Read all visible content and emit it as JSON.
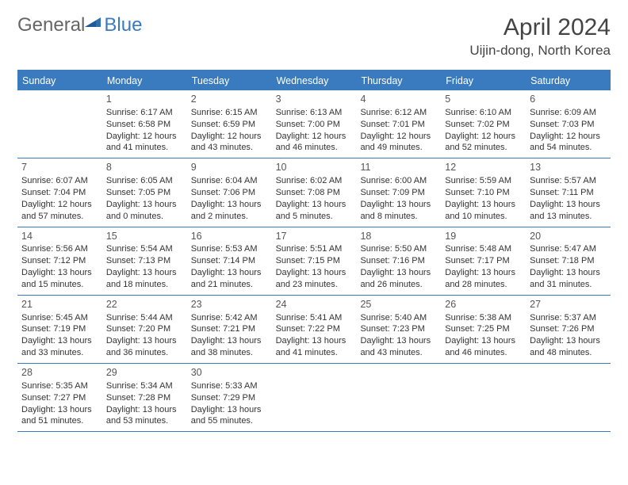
{
  "brand": {
    "part1": "General",
    "part2": "Blue"
  },
  "title": "April 2024",
  "location": "Uijin-dong, North Korea",
  "colors": {
    "header_bg": "#3a7bbf",
    "header_border": "#3a7bbf",
    "row_border": "#3a7bbf",
    "weekday_text": "#ffffff",
    "body_text": "#333333",
    "page_bg": "#ffffff"
  },
  "typography": {
    "title_fontsize": 30,
    "location_fontsize": 17,
    "weekday_fontsize": 12.5,
    "cell_fontsize": 11
  },
  "weekdays": [
    "Sunday",
    "Monday",
    "Tuesday",
    "Wednesday",
    "Thursday",
    "Friday",
    "Saturday"
  ],
  "weeks": [
    [
      null,
      {
        "n": "1",
        "sunrise": "6:17 AM",
        "sunset": "6:58 PM",
        "dl1": "Daylight: 12 hours",
        "dl2": "and 41 minutes."
      },
      {
        "n": "2",
        "sunrise": "6:15 AM",
        "sunset": "6:59 PM",
        "dl1": "Daylight: 12 hours",
        "dl2": "and 43 minutes."
      },
      {
        "n": "3",
        "sunrise": "6:13 AM",
        "sunset": "7:00 PM",
        "dl1": "Daylight: 12 hours",
        "dl2": "and 46 minutes."
      },
      {
        "n": "4",
        "sunrise": "6:12 AM",
        "sunset": "7:01 PM",
        "dl1": "Daylight: 12 hours",
        "dl2": "and 49 minutes."
      },
      {
        "n": "5",
        "sunrise": "6:10 AM",
        "sunset": "7:02 PM",
        "dl1": "Daylight: 12 hours",
        "dl2": "and 52 minutes."
      },
      {
        "n": "6",
        "sunrise": "6:09 AM",
        "sunset": "7:03 PM",
        "dl1": "Daylight: 12 hours",
        "dl2": "and 54 minutes."
      }
    ],
    [
      {
        "n": "7",
        "sunrise": "6:07 AM",
        "sunset": "7:04 PM",
        "dl1": "Daylight: 12 hours",
        "dl2": "and 57 minutes."
      },
      {
        "n": "8",
        "sunrise": "6:05 AM",
        "sunset": "7:05 PM",
        "dl1": "Daylight: 13 hours",
        "dl2": "and 0 minutes."
      },
      {
        "n": "9",
        "sunrise": "6:04 AM",
        "sunset": "7:06 PM",
        "dl1": "Daylight: 13 hours",
        "dl2": "and 2 minutes."
      },
      {
        "n": "10",
        "sunrise": "6:02 AM",
        "sunset": "7:08 PM",
        "dl1": "Daylight: 13 hours",
        "dl2": "and 5 minutes."
      },
      {
        "n": "11",
        "sunrise": "6:00 AM",
        "sunset": "7:09 PM",
        "dl1": "Daylight: 13 hours",
        "dl2": "and 8 minutes."
      },
      {
        "n": "12",
        "sunrise": "5:59 AM",
        "sunset": "7:10 PM",
        "dl1": "Daylight: 13 hours",
        "dl2": "and 10 minutes."
      },
      {
        "n": "13",
        "sunrise": "5:57 AM",
        "sunset": "7:11 PM",
        "dl1": "Daylight: 13 hours",
        "dl2": "and 13 minutes."
      }
    ],
    [
      {
        "n": "14",
        "sunrise": "5:56 AM",
        "sunset": "7:12 PM",
        "dl1": "Daylight: 13 hours",
        "dl2": "and 15 minutes."
      },
      {
        "n": "15",
        "sunrise": "5:54 AM",
        "sunset": "7:13 PM",
        "dl1": "Daylight: 13 hours",
        "dl2": "and 18 minutes."
      },
      {
        "n": "16",
        "sunrise": "5:53 AM",
        "sunset": "7:14 PM",
        "dl1": "Daylight: 13 hours",
        "dl2": "and 21 minutes."
      },
      {
        "n": "17",
        "sunrise": "5:51 AM",
        "sunset": "7:15 PM",
        "dl1": "Daylight: 13 hours",
        "dl2": "and 23 minutes."
      },
      {
        "n": "18",
        "sunrise": "5:50 AM",
        "sunset": "7:16 PM",
        "dl1": "Daylight: 13 hours",
        "dl2": "and 26 minutes."
      },
      {
        "n": "19",
        "sunrise": "5:48 AM",
        "sunset": "7:17 PM",
        "dl1": "Daylight: 13 hours",
        "dl2": "and 28 minutes."
      },
      {
        "n": "20",
        "sunrise": "5:47 AM",
        "sunset": "7:18 PM",
        "dl1": "Daylight: 13 hours",
        "dl2": "and 31 minutes."
      }
    ],
    [
      {
        "n": "21",
        "sunrise": "5:45 AM",
        "sunset": "7:19 PM",
        "dl1": "Daylight: 13 hours",
        "dl2": "and 33 minutes."
      },
      {
        "n": "22",
        "sunrise": "5:44 AM",
        "sunset": "7:20 PM",
        "dl1": "Daylight: 13 hours",
        "dl2": "and 36 minutes."
      },
      {
        "n": "23",
        "sunrise": "5:42 AM",
        "sunset": "7:21 PM",
        "dl1": "Daylight: 13 hours",
        "dl2": "and 38 minutes."
      },
      {
        "n": "24",
        "sunrise": "5:41 AM",
        "sunset": "7:22 PM",
        "dl1": "Daylight: 13 hours",
        "dl2": "and 41 minutes."
      },
      {
        "n": "25",
        "sunrise": "5:40 AM",
        "sunset": "7:23 PM",
        "dl1": "Daylight: 13 hours",
        "dl2": "and 43 minutes."
      },
      {
        "n": "26",
        "sunrise": "5:38 AM",
        "sunset": "7:25 PM",
        "dl1": "Daylight: 13 hours",
        "dl2": "and 46 minutes."
      },
      {
        "n": "27",
        "sunrise": "5:37 AM",
        "sunset": "7:26 PM",
        "dl1": "Daylight: 13 hours",
        "dl2": "and 48 minutes."
      }
    ],
    [
      {
        "n": "28",
        "sunrise": "5:35 AM",
        "sunset": "7:27 PM",
        "dl1": "Daylight: 13 hours",
        "dl2": "and 51 minutes."
      },
      {
        "n": "29",
        "sunrise": "5:34 AM",
        "sunset": "7:28 PM",
        "dl1": "Daylight: 13 hours",
        "dl2": "and 53 minutes."
      },
      {
        "n": "30",
        "sunrise": "5:33 AM",
        "sunset": "7:29 PM",
        "dl1": "Daylight: 13 hours",
        "dl2": "and 55 minutes."
      },
      null,
      null,
      null,
      null
    ]
  ]
}
